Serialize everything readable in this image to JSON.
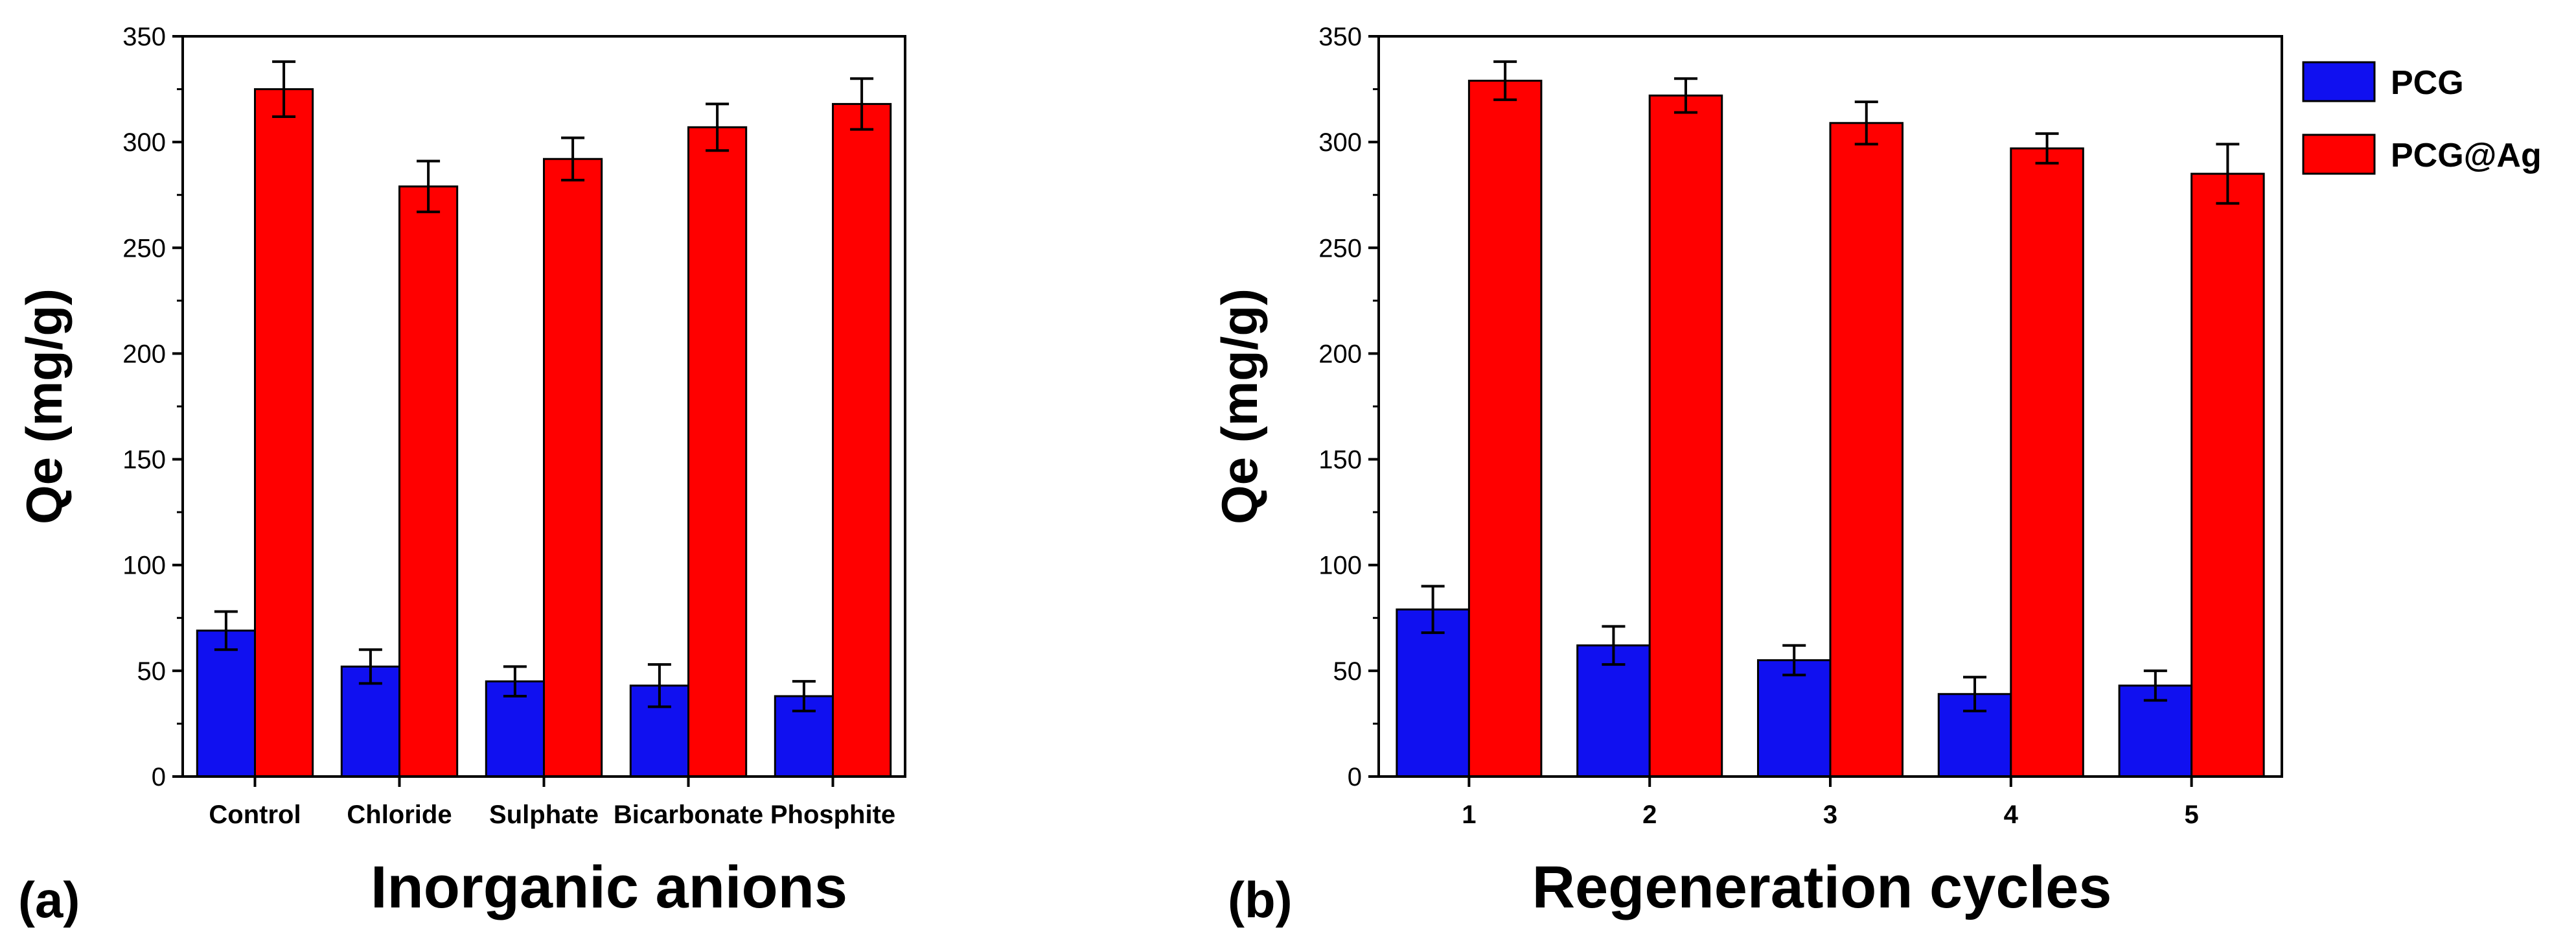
{
  "figure": {
    "series_colors": {
      "PCG": "#1010f0",
      "PCG@Ag": "#ff0000"
    }
  },
  "legend": {
    "items": [
      {
        "label": "PCG",
        "color": "#1010f0"
      },
      {
        "label": "PCG@Ag",
        "color": "#ff0000"
      }
    ]
  },
  "chart_data": [
    {
      "type": "bar",
      "panel_label": "(a)",
      "title": "",
      "xlabel": "Inorganic anions",
      "ylabel": "Qe (mg/g)",
      "ylim": [
        0,
        350
      ],
      "yticks": [
        0,
        50,
        100,
        150,
        200,
        250,
        300,
        350
      ],
      "categories": [
        "Control",
        "Chloride",
        "Sulphate",
        "Bicarbonate",
        "Phosphite"
      ],
      "series": [
        {
          "name": "PCG",
          "values": [
            69,
            52,
            45,
            43,
            38
          ],
          "errors": [
            9,
            8,
            7,
            10,
            7
          ]
        },
        {
          "name": "PCG@Ag",
          "values": [
            325,
            279,
            292,
            307,
            318
          ],
          "errors": [
            13,
            12,
            10,
            11,
            12
          ]
        }
      ]
    },
    {
      "type": "bar",
      "panel_label": "(b)",
      "title": "",
      "xlabel": "Regeneration cycles",
      "ylabel": "Qe (mg/g)",
      "ylim": [
        0,
        350
      ],
      "yticks": [
        0,
        50,
        100,
        150,
        200,
        250,
        300,
        350
      ],
      "categories": [
        "1",
        "2",
        "3",
        "4",
        "5"
      ],
      "series": [
        {
          "name": "PCG",
          "values": [
            79,
            62,
            55,
            39,
            43
          ],
          "errors": [
            11,
            9,
            7,
            8,
            7
          ]
        },
        {
          "name": "PCG@Ag",
          "values": [
            329,
            322,
            309,
            297,
            285
          ],
          "errors": [
            9,
            8,
            10,
            7,
            14
          ]
        }
      ],
      "legend": "top-right"
    }
  ]
}
